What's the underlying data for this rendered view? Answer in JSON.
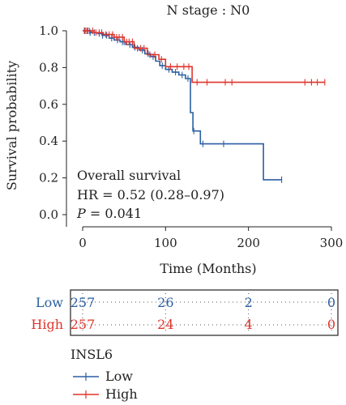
{
  "chart_data": {
    "type": "line",
    "title": "N stage : N0",
    "xlabel": "Time (Months)",
    "ylabel": "Survival probability",
    "xlim": [
      0,
      300
    ],
    "ylim": [
      0,
      1.0
    ],
    "xticks": [
      "0",
      "100",
      "200",
      "300"
    ],
    "yticks": [
      "0.0",
      "0.2",
      "0.4",
      "0.6",
      "0.8",
      "1.0"
    ],
    "annotations": {
      "line1": "Overall survival",
      "line2": "HR = 0.52 (0.28–0.97)",
      "p_label": "P",
      "p_value": " = 0.041"
    },
    "series": [
      {
        "name": "Low",
        "color": "#2b5fa3",
        "steps": [
          [
            0,
            1.0
          ],
          [
            10,
            0.99
          ],
          [
            18,
            0.985
          ],
          [
            25,
            0.975
          ],
          [
            32,
            0.96
          ],
          [
            38,
            0.95
          ],
          [
            45,
            0.94
          ],
          [
            52,
            0.925
          ],
          [
            60,
            0.91
          ],
          [
            68,
            0.895
          ],
          [
            75,
            0.875
          ],
          [
            82,
            0.86
          ],
          [
            88,
            0.835
          ],
          [
            93,
            0.81
          ],
          [
            100,
            0.79
          ],
          [
            108,
            0.775
          ],
          [
            116,
            0.76
          ],
          [
            124,
            0.74
          ],
          [
            130,
            0.555
          ],
          [
            133,
            0.455
          ],
          [
            142,
            0.385
          ],
          [
            218,
            0.19
          ],
          [
            240,
            0.19
          ]
        ],
        "censor": [
          [
            3,
            1.0
          ],
          [
            6,
            1.0
          ],
          [
            9,
            0.99
          ],
          [
            14,
            0.99
          ],
          [
            20,
            0.985
          ],
          [
            24,
            0.975
          ],
          [
            29,
            0.975
          ],
          [
            35,
            0.96
          ],
          [
            42,
            0.95
          ],
          [
            48,
            0.94
          ],
          [
            50,
            0.94
          ],
          [
            57,
            0.925
          ],
          [
            63,
            0.91
          ],
          [
            72,
            0.895
          ],
          [
            79,
            0.875
          ],
          [
            85,
            0.86
          ],
          [
            96,
            0.81
          ],
          [
            104,
            0.79
          ],
          [
            112,
            0.775
          ],
          [
            120,
            0.76
          ],
          [
            127,
            0.74
          ],
          [
            134,
            0.455
          ],
          [
            145,
            0.385
          ],
          [
            170,
            0.385
          ],
          [
            240,
            0.19
          ]
        ]
      },
      {
        "name": "High",
        "color": "#e0332b",
        "steps": [
          [
            0,
            1.0
          ],
          [
            14,
            0.99
          ],
          [
            25,
            0.98
          ],
          [
            38,
            0.965
          ],
          [
            50,
            0.94
          ],
          [
            62,
            0.905
          ],
          [
            78,
            0.87
          ],
          [
            92,
            0.845
          ],
          [
            100,
            0.805
          ],
          [
            132,
            0.72
          ],
          [
            292,
            0.72
          ]
        ],
        "censor": [
          [
            2,
            1.0
          ],
          [
            5,
            1.0
          ],
          [
            8,
            1.0
          ],
          [
            12,
            1.0
          ],
          [
            16,
            0.99
          ],
          [
            20,
            0.99
          ],
          [
            23,
            0.99
          ],
          [
            28,
            0.98
          ],
          [
            32,
            0.98
          ],
          [
            36,
            0.98
          ],
          [
            41,
            0.965
          ],
          [
            44,
            0.965
          ],
          [
            48,
            0.965
          ],
          [
            53,
            0.94
          ],
          [
            56,
            0.94
          ],
          [
            60,
            0.94
          ],
          [
            66,
            0.905
          ],
          [
            70,
            0.905
          ],
          [
            74,
            0.905
          ],
          [
            81,
            0.87
          ],
          [
            87,
            0.87
          ],
          [
            95,
            0.845
          ],
          [
            106,
            0.805
          ],
          [
            114,
            0.805
          ],
          [
            122,
            0.805
          ],
          [
            128,
            0.805
          ],
          [
            138,
            0.72
          ],
          [
            150,
            0.72
          ],
          [
            172,
            0.72
          ],
          [
            180,
            0.72
          ],
          [
            268,
            0.72
          ],
          [
            276,
            0.72
          ],
          [
            283,
            0.72
          ],
          [
            292,
            0.72
          ]
        ]
      }
    ],
    "risk_table": {
      "rows": [
        {
          "label": "Low",
          "values": [
            "257",
            "26",
            "2",
            "0"
          ],
          "color": "#2b5fa3"
        },
        {
          "label": "High",
          "values": [
            "257",
            "24",
            "4",
            "0"
          ],
          "color": "#e0332b"
        }
      ],
      "times": [
        0,
        100,
        200,
        300
      ]
    },
    "legend": {
      "title": "INSL6",
      "items": [
        {
          "label": "Low",
          "color": "#2b5fa3"
        },
        {
          "label": "High",
          "color": "#e0332b"
        }
      ]
    }
  }
}
